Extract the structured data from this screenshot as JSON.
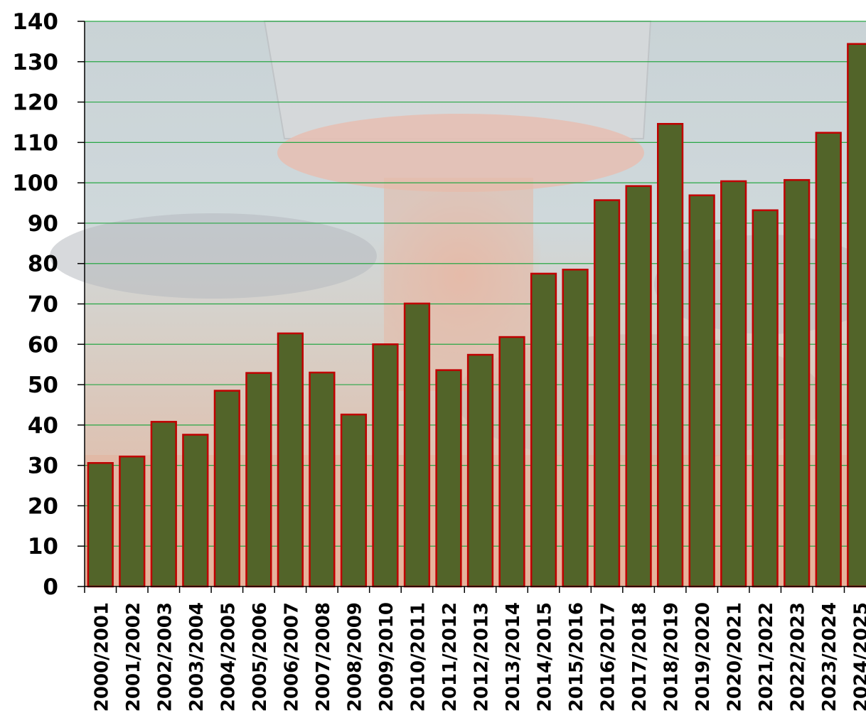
{
  "chart_data": {
    "type": "bar",
    "title": "",
    "xlabel": "",
    "ylabel": "",
    "ylim": [
      0,
      140
    ],
    "yticks": [
      0,
      10,
      20,
      30,
      40,
      50,
      60,
      70,
      80,
      90,
      100,
      110,
      120,
      130,
      140
    ],
    "grid": true,
    "legend": "none",
    "categories": [
      "2000/2001",
      "2001/2002",
      "2002/2003",
      "2003/2004",
      "2004/2005",
      "2005/2006",
      "2006/2007",
      "2007/2008",
      "2008/2009",
      "2009/2010",
      "2010/2011",
      "2011/2012",
      "2012/2013",
      "2013/2014",
      "2014/2015",
      "2015/2016",
      "2016/2017",
      "2017/2018",
      "2018/2019",
      "2019/2020",
      "2020/2021",
      "2021/2022",
      "2022/2023",
      "2023/2024",
      "2024/2025"
    ],
    "values": [
      30.6,
      32.2,
      40.8,
      37.6,
      48.5,
      52.9,
      62.7,
      53.0,
      42.6,
      60.0,
      70.1,
      53.6,
      57.4,
      61.8,
      77.5,
      78.5,
      95.7,
      99.2,
      114.6,
      96.9,
      100.4,
      93.2,
      100.7,
      112.4,
      134.4
    ],
    "colors": {
      "bar_fill": "#526429",
      "bar_stroke": "#c00000",
      "grid": "#28a745",
      "axis": "#000000"
    }
  }
}
